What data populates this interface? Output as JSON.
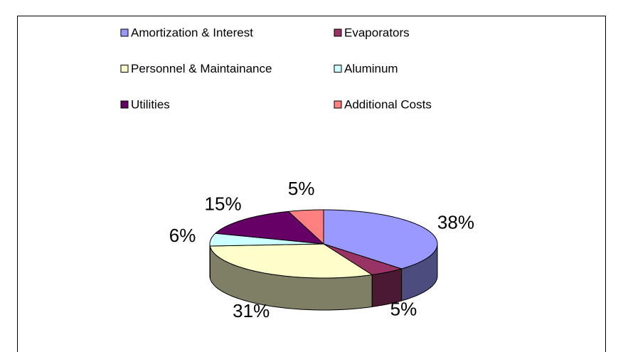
{
  "chart_data": {
    "type": "pie3d",
    "categories": [
      "Amortization & Interest",
      "Evaporators",
      "Personnel & Maintainance",
      "Aluminum",
      "Utilities",
      "Additional Costs"
    ],
    "values": [
      38,
      5,
      31,
      6,
      15,
      5
    ],
    "value_labels": [
      "38%",
      "5%",
      "31%",
      "6%",
      "15%",
      "5%"
    ],
    "colors": [
      "#9999ff",
      "#993366",
      "#ffffcc",
      "#ccffff",
      "#660066",
      "#ff8080"
    ]
  }
}
